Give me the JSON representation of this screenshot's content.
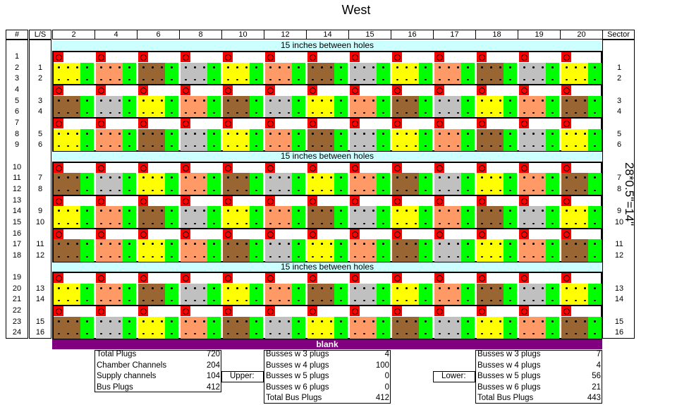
{
  "title": "West",
  "side_note": "28*0.5\"=14\"",
  "headers": {
    "num": "#",
    "ls": "L/S",
    "chambers": [
      "2",
      "4",
      "6",
      "8",
      "10",
      "12",
      "14",
      "15",
      "16",
      "17",
      "18",
      "19",
      "20"
    ],
    "sector": "Sector"
  },
  "row_numbers": [
    "1",
    "2",
    "3",
    "4",
    "5",
    "6",
    "7",
    "8",
    "9",
    "10",
    "11",
    "12",
    "13",
    "14",
    "15",
    "16",
    "17",
    "18",
    "19",
    "20",
    "21",
    "22",
    "23",
    "24"
  ],
  "ls_labels": [
    "",
    "1",
    "2",
    "",
    "3",
    "4",
    "",
    "5",
    "6",
    "",
    "7",
    "8",
    "",
    "9",
    "10",
    "",
    "11",
    "12",
    "",
    "13",
    "14",
    "",
    "15",
    "16"
  ],
  "sector_labels": [
    "",
    "1",
    "2",
    "",
    "3",
    "4",
    "",
    "5",
    "6",
    "",
    "7",
    "8",
    "",
    "9",
    "10",
    "",
    "11",
    "12",
    "",
    "13",
    "14",
    "",
    "15",
    "16"
  ],
  "banner_text": "15 inches between holes",
  "blank_label": "blank",
  "plug_marker": "O",
  "colors": {
    "plug_red": "#ff0000",
    "yellow": "#ffff00",
    "salmon": "#ff9966",
    "brown": "#996633",
    "gray": "#c0c0c0",
    "green": "#00ff00",
    "banner": "#ccffff",
    "blank": "#800080"
  },
  "pattern_rows": [
    [
      "yellow",
      "salmon",
      "brown",
      "gray",
      "yellow",
      "salmon",
      "brown",
      "gray",
      "yellow",
      "salmon",
      "brown",
      "gray",
      "yellow"
    ],
    [
      "brown",
      "gray",
      "yellow",
      "salmon",
      "brown",
      "gray",
      "yellow",
      "salmon",
      "brown",
      "gray",
      "yellow",
      "salmon",
      "brown"
    ],
    [
      "yellow",
      "salmon",
      "brown",
      "gray",
      "yellow",
      "salmon",
      "brown",
      "gray",
      "yellow",
      "salmon",
      "brown",
      "gray",
      "yellow"
    ],
    [
      "brown",
      "gray",
      "yellow",
      "salmon",
      "brown",
      "gray",
      "yellow",
      "salmon",
      "brown",
      "gray",
      "yellow",
      "salmon",
      "brown"
    ],
    [
      "yellow",
      "salmon",
      "brown",
      "gray",
      "yellow",
      "salmon",
      "brown",
      "gray",
      "yellow",
      "salmon",
      "brown",
      "gray",
      "yellow"
    ],
    [
      "brown",
      "salmon",
      "yellow",
      "salmon",
      "brown",
      "gray",
      "yellow",
      "salmon",
      "brown",
      "gray",
      "yellow",
      "salmon",
      "brown"
    ],
    [
      "yellow",
      "salmon",
      "brown",
      "gray",
      "yellow",
      "salmon",
      "brown",
      "gray",
      "yellow",
      "salmon",
      "brown",
      "gray",
      "yellow"
    ],
    [
      "brown",
      "gray",
      "yellow",
      "salmon",
      "brown",
      "gray",
      "yellow",
      "salmon",
      "brown",
      "gray",
      "yellow",
      "salmon",
      "brown"
    ]
  ],
  "summary_left": {
    "rows": [
      {
        "label": "Total Plugs",
        "value": "720"
      },
      {
        "label": "Chamber Channels",
        "value": "204"
      },
      {
        "label": "Supply channels",
        "value": "104"
      },
      {
        "label": "Bus Plugs",
        "value": "412"
      }
    ]
  },
  "summary_upper": {
    "tag": "Upper:",
    "rows": [
      {
        "label": "Busses w 3 plugs",
        "value": "4"
      },
      {
        "label": "Busses w 4 plugs",
        "value": "100"
      },
      {
        "label": "Busses w 5 plugs",
        "value": "0"
      },
      {
        "label": "Busses w 6 plugs",
        "value": "0"
      },
      {
        "label": "Total Bus Plugs",
        "value": "412"
      }
    ]
  },
  "summary_lower": {
    "tag": "Lower:",
    "rows": [
      {
        "label": "Busses w 3 plugs",
        "value": "7"
      },
      {
        "label": "Busses w 4 plugs",
        "value": "4"
      },
      {
        "label": "Busses w 5 plugs",
        "value": "56"
      },
      {
        "label": "Busses w 6 plugs",
        "value": "21"
      },
      {
        "label": "Total Bus Plugs",
        "value": "443"
      }
    ]
  }
}
